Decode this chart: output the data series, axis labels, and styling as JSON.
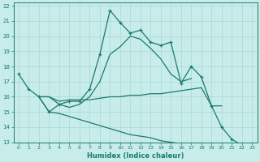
{
  "xlabel": "Humidex (Indice chaleur)",
  "background_color": "#c8ece9",
  "grid_color": "#a8d8d4",
  "line_color": "#1a7a6e",
  "xlim": [
    -0.5,
    23.5
  ],
  "ylim": [
    13,
    22.2
  ],
  "xticks": [
    0,
    1,
    2,
    3,
    4,
    5,
    6,
    7,
    8,
    9,
    10,
    11,
    12,
    13,
    14,
    15,
    16,
    17,
    18,
    19,
    20,
    21,
    22,
    23
  ],
  "yticks": [
    13,
    14,
    15,
    16,
    17,
    18,
    19,
    20,
    21,
    22
  ],
  "line1": {
    "x": [
      0,
      1,
      2,
      3,
      4,
      5,
      6,
      7,
      8,
      9,
      10,
      11,
      12,
      13,
      14,
      15,
      16,
      17,
      18,
      19,
      20,
      21,
      22
    ],
    "y": [
      17.5,
      16.5,
      16.0,
      15.0,
      15.5,
      15.7,
      15.7,
      16.5,
      18.8,
      21.7,
      20.9,
      20.2,
      20.4,
      19.6,
      19.4,
      19.6,
      16.9,
      18.0,
      17.3,
      15.4,
      14.0,
      13.2,
      12.8
    ]
  },
  "line2": {
    "x": [
      2,
      3,
      4,
      5,
      6,
      7,
      8,
      9,
      10,
      11,
      12,
      13,
      14,
      15,
      16,
      17,
      18,
      19,
      20
    ],
    "y": [
      16.0,
      16.0,
      15.7,
      15.8,
      15.8,
      15.8,
      15.9,
      16.0,
      16.0,
      16.1,
      16.1,
      16.2,
      16.2,
      16.3,
      16.4,
      16.5,
      16.6,
      15.4,
      15.4
    ]
  },
  "line3": {
    "x": [
      2,
      3,
      4,
      5,
      6,
      7,
      8,
      9,
      10,
      11,
      12,
      13,
      14,
      15,
      16,
      17
    ],
    "y": [
      16.0,
      16.0,
      15.5,
      15.3,
      15.5,
      16.0,
      17.0,
      18.8,
      19.3,
      20.0,
      19.8,
      19.2,
      18.5,
      17.5,
      17.0,
      17.2
    ]
  },
  "line4": {
    "x": [
      2,
      3,
      4,
      5,
      6,
      7,
      8,
      9,
      10,
      11,
      12,
      13,
      14,
      15,
      16,
      17,
      18,
      19,
      20,
      21,
      22,
      23
    ],
    "y": [
      16.0,
      15.0,
      14.9,
      14.7,
      14.5,
      14.3,
      14.1,
      13.9,
      13.7,
      13.5,
      13.4,
      13.3,
      13.1,
      13.0,
      12.9,
      12.8,
      12.7,
      12.7,
      12.6,
      12.6,
      12.6,
      12.5
    ]
  }
}
